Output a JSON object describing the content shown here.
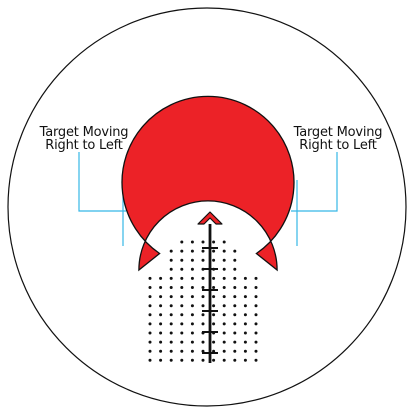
{
  "annotations": {
    "left": {
      "line1": "Target Moving",
      "line2": "Right to Left"
    },
    "right": {
      "line1": "Target Moving",
      "line2": "Right to Left"
    }
  },
  "colors": {
    "ring": "#ec2227",
    "chevron": "#ec2227",
    "leader": "#36b7e6",
    "stroke": "#111111",
    "background": "#ffffff"
  },
  "reticle": {
    "dot_grid_columns": 11,
    "dot_grid_rows": 14,
    "crosshair_ticks": 6
  }
}
